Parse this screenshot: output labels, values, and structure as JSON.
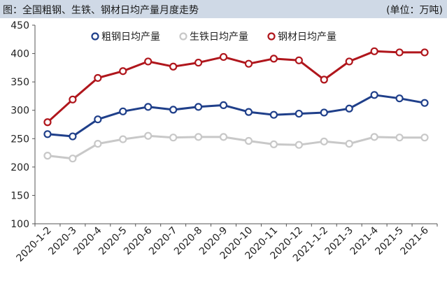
{
  "header": {
    "title": "图：全国粗钢、生铁、钢材日均产量月度走势",
    "unit": "(单位：万吨)"
  },
  "chart_data": {
    "type": "line",
    "categories": [
      "2020-1-2",
      "2020-3",
      "2020-4",
      "2020-5",
      "2020-6",
      "2020-7",
      "2020-8",
      "2020-9",
      "2020-10",
      "2020-11",
      "2020-12",
      "2021-1-2",
      "2021-3",
      "2021-4",
      "2021-5",
      "2021-6"
    ],
    "ylim": [
      100,
      450
    ],
    "yticks": [
      100,
      150,
      200,
      250,
      300,
      350,
      400,
      450
    ],
    "grid": false,
    "legend_position": "top",
    "series": [
      {
        "name": "粗钢日均产量",
        "color": "#1f3f8a",
        "values": [
          258,
          254,
          284,
          298,
          306,
          301,
          306,
          309,
          297,
          292,
          294,
          296,
          303,
          327,
          321,
          313
        ]
      },
      {
        "name": "生铁日均产量",
        "color": "#c8c8c8",
        "values": [
          220,
          215,
          241,
          249,
          255,
          252,
          253,
          253,
          246,
          240,
          239,
          245,
          241,
          253,
          252,
          252
        ]
      },
      {
        "name": "钢材日均产量",
        "color": "#b0161c",
        "values": [
          279,
          319,
          357,
          369,
          386,
          377,
          384,
          394,
          382,
          391,
          388,
          354,
          386,
          404,
          402,
          402
        ]
      }
    ]
  }
}
